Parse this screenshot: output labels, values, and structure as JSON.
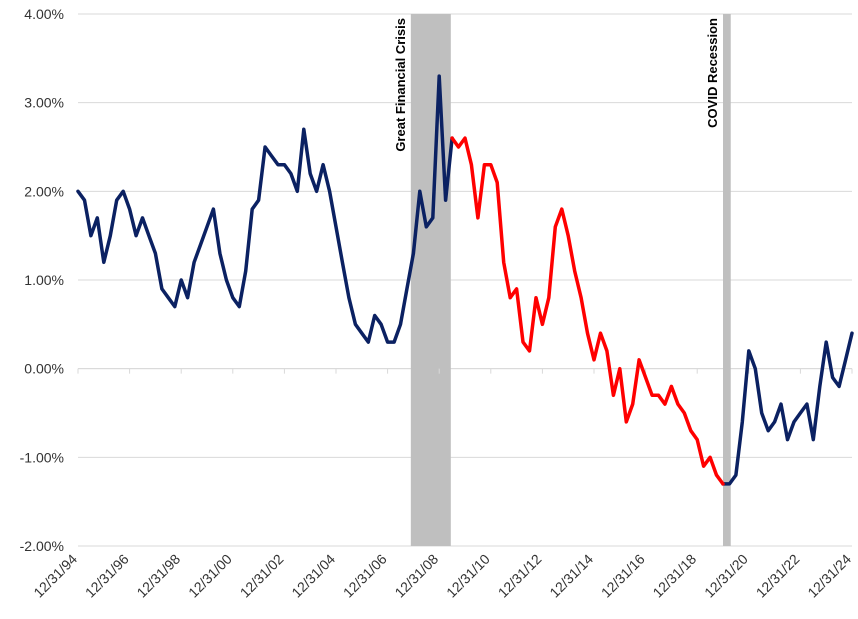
{
  "chart_data": {
    "type": "line",
    "x": [
      1995,
      1995.25,
      1995.5,
      1995.75,
      1996,
      1996.25,
      1996.5,
      1996.75,
      1997,
      1997.25,
      1997.5,
      1997.75,
      1998,
      1998.25,
      1998.5,
      1998.75,
      1999,
      1999.25,
      1999.5,
      1999.75,
      2000,
      2000.25,
      2000.5,
      2000.75,
      2001,
      2001.25,
      2001.5,
      2001.75,
      2002,
      2002.25,
      2002.5,
      2002.75,
      2003,
      2003.25,
      2003.5,
      2003.75,
      2004,
      2004.25,
      2004.5,
      2004.75,
      2005,
      2005.25,
      2005.5,
      2005.75,
      2006,
      2006.25,
      2006.5,
      2006.75,
      2007,
      2007.25,
      2007.5,
      2007.75,
      2008,
      2008.25,
      2008.5,
      2008.75,
      2009,
      2009.25,
      2009.5,
      2009.75,
      2010,
      2010.25,
      2010.5,
      2010.75,
      2011,
      2011.25,
      2011.5,
      2011.75,
      2012,
      2012.25,
      2012.5,
      2012.75,
      2013,
      2013.25,
      2013.5,
      2013.75,
      2014,
      2014.25,
      2014.5,
      2014.75,
      2015,
      2015.25,
      2015.5,
      2015.75,
      2016,
      2016.25,
      2016.5,
      2016.75,
      2017,
      2017.25,
      2017.5,
      2017.75,
      2018,
      2018.25,
      2018.5,
      2018.75,
      2019,
      2019.25,
      2019.5,
      2019.75,
      2020,
      2020.25,
      2020.5,
      2020.75,
      2021,
      2021.25,
      2021.5,
      2021.75,
      2022,
      2022.25,
      2022.5,
      2022.75,
      2023,
      2023.25,
      2023.5,
      2023.75,
      2024,
      2024.25,
      2024.5,
      2024.75,
      2025
    ],
    "series": [
      {
        "color": "#0b2162",
        "values": [
          2.0,
          1.9,
          1.5,
          1.7,
          1.2,
          1.5,
          1.9,
          2.0,
          1.8,
          1.5,
          1.7,
          1.5,
          1.3,
          0.9,
          0.8,
          0.7,
          1.0,
          0.8,
          1.2,
          1.4,
          1.6,
          1.8,
          1.3,
          1.0,
          0.8,
          0.7,
          1.1,
          1.8,
          1.9,
          2.5,
          2.4,
          2.3,
          2.3,
          2.2,
          2.0,
          2.7,
          2.2,
          2.0,
          2.3,
          2.0,
          1.6,
          1.2,
          0.8,
          0.5,
          0.4,
          0.3,
          0.6,
          0.5,
          0.3,
          0.3,
          0.5,
          0.9,
          1.3,
          2.0,
          1.6,
          1.7,
          3.3,
          1.9,
          2.6,
          null,
          null,
          null,
          null,
          null,
          null,
          null,
          null,
          null,
          null,
          null,
          null,
          null,
          null,
          null,
          null,
          null,
          null,
          null,
          null,
          null,
          null,
          null,
          null,
          null,
          null,
          null,
          null,
          null,
          null,
          null,
          null,
          null,
          null,
          null,
          null,
          null,
          null,
          null,
          null,
          null,
          -1.3,
          -1.3,
          -1.2,
          -0.6,
          0.2,
          0.0,
          -0.5,
          -0.7,
          -0.6,
          -0.4,
          -0.8,
          -0.6,
          -0.5,
          -0.4,
          -0.8,
          -0.2,
          0.3,
          -0.1,
          -0.2,
          0.1,
          0.4
        ]
      },
      {
        "color": "#ff0000",
        "values": [
          null,
          null,
          null,
          null,
          null,
          null,
          null,
          null,
          null,
          null,
          null,
          null,
          null,
          null,
          null,
          null,
          null,
          null,
          null,
          null,
          null,
          null,
          null,
          null,
          null,
          null,
          null,
          null,
          null,
          null,
          null,
          null,
          null,
          null,
          null,
          null,
          null,
          null,
          null,
          null,
          null,
          null,
          null,
          null,
          null,
          null,
          null,
          null,
          null,
          null,
          null,
          null,
          null,
          null,
          null,
          null,
          null,
          null,
          2.6,
          2.5,
          2.6,
          2.3,
          1.7,
          2.3,
          2.3,
          2.1,
          1.2,
          0.8,
          0.9,
          0.3,
          0.2,
          0.8,
          0.5,
          0.8,
          1.6,
          1.8,
          1.5,
          1.1,
          0.8,
          0.4,
          0.1,
          0.4,
          0.2,
          -0.3,
          0.0,
          -0.6,
          -0.4,
          0.1,
          -0.1,
          -0.3,
          -0.3,
          -0.4,
          -0.2,
          -0.4,
          -0.5,
          -0.7,
          -0.8,
          -1.1,
          -1.0,
          -1.2,
          -1.3,
          null,
          null,
          null,
          null,
          null,
          null,
          null,
          null,
          null,
          null,
          null,
          null,
          null,
          null,
          null,
          null,
          null,
          null,
          null,
          null
        ]
      }
    ],
    "xlim": [
      1995,
      2025
    ],
    "xticks": [
      {
        "value": 1995,
        "label": "12/31/94"
      },
      {
        "value": 1997,
        "label": "12/31/96"
      },
      {
        "value": 1999,
        "label": "12/31/98"
      },
      {
        "value": 2001,
        "label": "12/31/00"
      },
      {
        "value": 2003,
        "label": "12/31/02"
      },
      {
        "value": 2005,
        "label": "12/31/04"
      },
      {
        "value": 2007,
        "label": "12/31/06"
      },
      {
        "value": 2009,
        "label": "12/31/08"
      },
      {
        "value": 2011,
        "label": "12/31/10"
      },
      {
        "value": 2013,
        "label": "12/31/12"
      },
      {
        "value": 2015,
        "label": "12/31/14"
      },
      {
        "value": 2017,
        "label": "12/31/16"
      },
      {
        "value": 2019,
        "label": "12/31/18"
      },
      {
        "value": 2021,
        "label": "12/31/20"
      },
      {
        "value": 2023,
        "label": "12/31/22"
      },
      {
        "value": 2025,
        "label": "12/31/24"
      }
    ],
    "ylim": [
      -2,
      4
    ],
    "yticks": [
      {
        "value": -2,
        "label": "-2.00%"
      },
      {
        "value": -1,
        "label": "-1.00%"
      },
      {
        "value": 0,
        "label": "0.00%"
      },
      {
        "value": 1,
        "label": "1.00%"
      },
      {
        "value": 2,
        "label": "2.00%"
      },
      {
        "value": 3,
        "label": "3.00%"
      },
      {
        "value": 4,
        "label": "4.00%"
      }
    ],
    "grid": true,
    "shaded": [
      {
        "label": "Great Financial Crisis",
        "x": [
          2007.9,
          2009.45
        ]
      },
      {
        "label": "COVID Recession",
        "x": [
          2020.0,
          2020.3
        ]
      }
    ],
    "shade_color": "#bfbfbf"
  }
}
